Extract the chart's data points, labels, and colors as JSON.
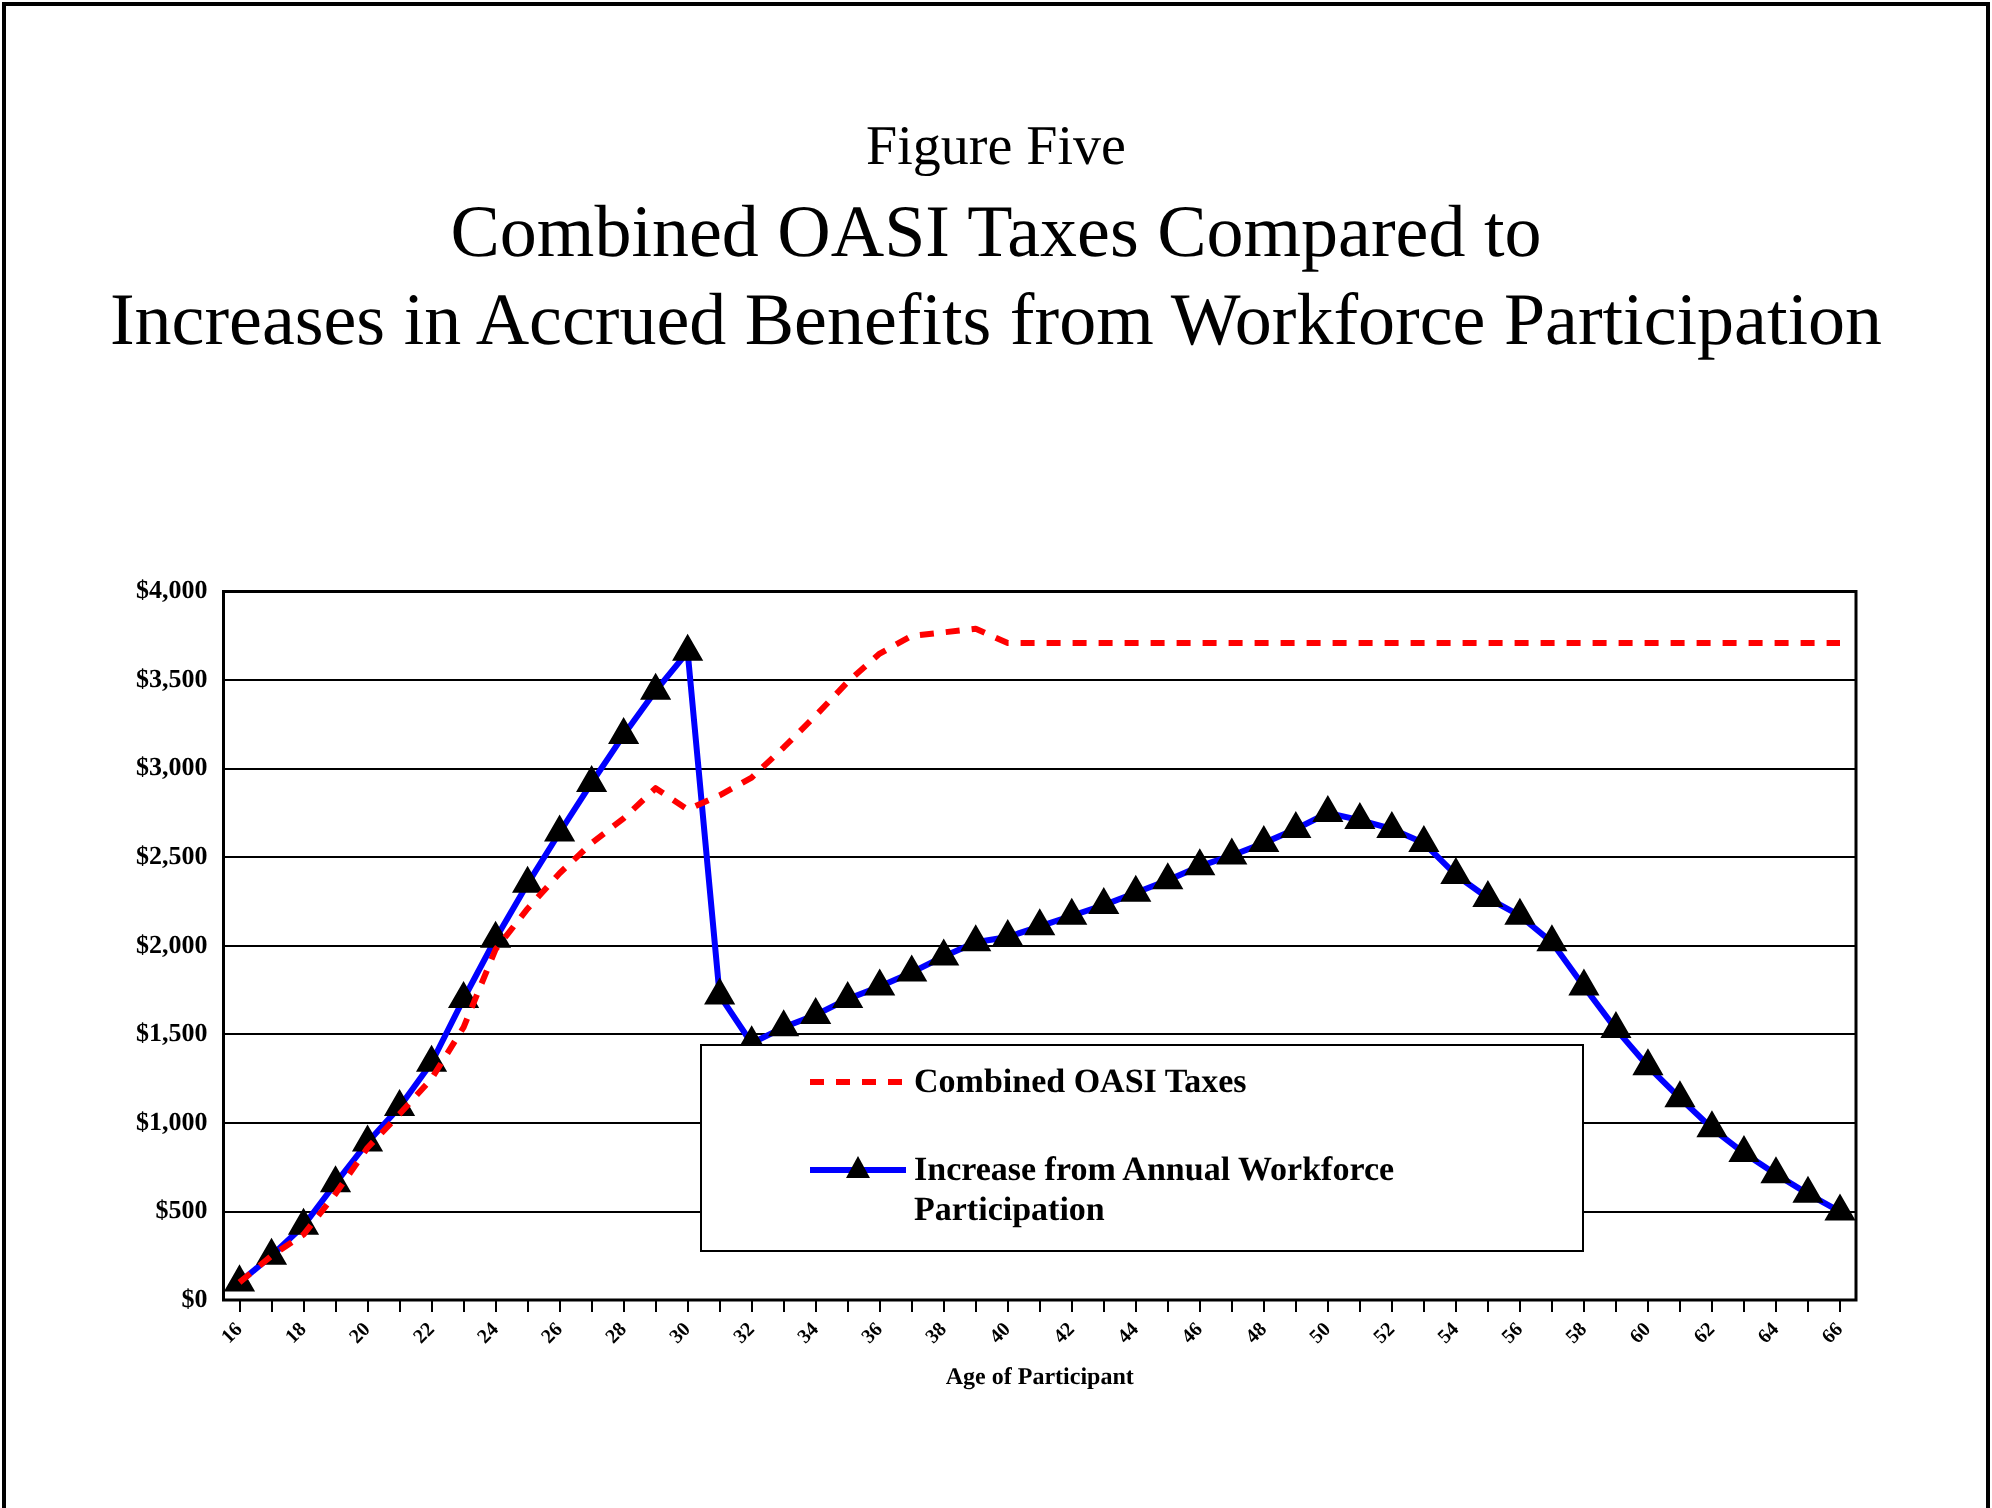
{
  "chart_data": {
    "type": "line",
    "title": "Figure Five",
    "subtitle": "Combined OASI Taxes Compared to\nIncreases in Accrued Benefits from Workforce Participation",
    "xlabel": "Age of Participant",
    "categories": [
      "16",
      null,
      "18",
      null,
      "20",
      null,
      "22",
      null,
      "24",
      null,
      "26",
      null,
      "28",
      null,
      "30",
      null,
      "32",
      null,
      "34",
      null,
      "36",
      null,
      "38",
      null,
      "40",
      null,
      "42",
      null,
      "44",
      null,
      "46",
      null,
      "48",
      null,
      "50",
      null,
      "52",
      null,
      "54",
      null,
      "56",
      null,
      "58",
      null,
      "60",
      null,
      "62",
      null,
      "64",
      null,
      "66"
    ],
    "ylim": [
      0,
      4000
    ],
    "yticks": [
      {
        "value": 0,
        "label": "$0"
      },
      {
        "value": 500,
        "label": "$500"
      },
      {
        "value": 1000,
        "label": "$1,000"
      },
      {
        "value": 1500,
        "label": "$1,500"
      },
      {
        "value": 2000,
        "label": "$2,000"
      },
      {
        "value": 2500,
        "label": "$2,500"
      },
      {
        "value": 3000,
        "label": "$3,000"
      },
      {
        "value": 3500,
        "label": "$3,500"
      },
      {
        "value": 4000,
        "label": "$4,000"
      }
    ],
    "grid": "y",
    "legend": "bottom",
    "series": [
      {
        "name": "Combined OASI Taxes",
        "color": "#ff0000",
        "line_style": "dashed",
        "marker": "none",
        "values": [
          100,
          250,
          370,
          600,
          860,
          1050,
          1250,
          1540,
          1980,
          2210,
          2410,
          2580,
          2720,
          2890,
          2770,
          2850,
          2950,
          3120,
          3300,
          3490,
          3650,
          3750,
          3770,
          3790,
          3710,
          3710,
          3710,
          3710,
          3710,
          3710,
          3710,
          3710,
          3710,
          3710,
          3710,
          3710,
          3710,
          3710,
          3710,
          3710,
          3710,
          3710,
          3710,
          3710,
          3710,
          3710,
          3710,
          3710,
          3710,
          3710,
          3710
        ]
      },
      {
        "name": "Increase from Annual Workforce Participation",
        "color": "#0000ff",
        "line_style": "solid",
        "marker": "triangle",
        "values": [
          100,
          250,
          420,
          660,
          890,
          1090,
          1340,
          1700,
          2040,
          2350,
          2640,
          2920,
          3190,
          3440,
          3660,
          1720,
          1450,
          1540,
          1610,
          1700,
          1770,
          1850,
          1940,
          2020,
          2050,
          2110,
          2170,
          2230,
          2300,
          2370,
          2450,
          2510,
          2580,
          2660,
          2750,
          2710,
          2660,
          2580,
          2400,
          2270,
          2170,
          2020,
          1770,
          1530,
          1320,
          1140,
          970,
          830,
          710,
          600,
          500
        ]
      }
    ]
  }
}
